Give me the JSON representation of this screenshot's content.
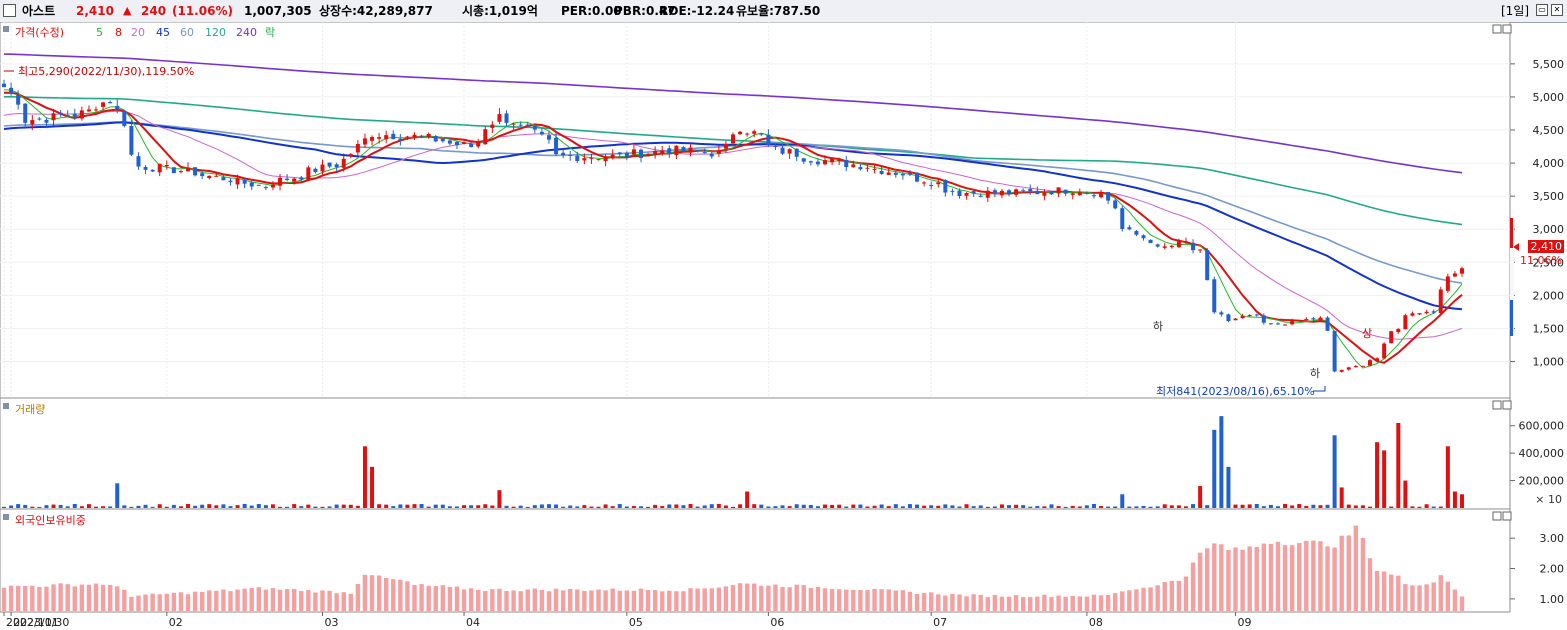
{
  "header": {
    "name": "아스트",
    "price": "2,410",
    "change_arrow": "▲",
    "change": "240",
    "change_pct": "(11.06%)",
    "volume": "1,007,305",
    "listed_label": "상장수:42,289,877",
    "mktcap_label": "시총:1,019억",
    "per_label": "PER:0.00",
    "pbr_label": "PBR:0.47",
    "roe_label": "ROE:-12.24",
    "reserve_label": "유보율:787.50",
    "period": "[1일]"
  },
  "legend": {
    "price": "가격(수정)",
    "ma5": "5",
    "ma8": "8",
    "ma20": "20",
    "ma45": "45",
    "ma60": "60",
    "ma120": "120",
    "ma240": "240",
    "ma_last": "락"
  },
  "panels": {
    "volume_title": "거래량",
    "foreign_title": "외국인보유비중"
  },
  "annotations": {
    "high": "최고5,290(2022/11/30),119.50%",
    "low": "최저841(2023/08/16),65.10%",
    "limit_down": "하",
    "limit_up": "상",
    "last_price": "2,410",
    "last_pct": "11.06%",
    "volume_unit": "× 10"
  },
  "colors": {
    "up": "#e01010",
    "down": "#2060d0",
    "ma5": "#22bb22",
    "ma8": "#dd1111",
    "ma20": "#cc66cc",
    "ma45": "#1133cc",
    "ma60": "#7799cc",
    "ma120": "#22aa88",
    "ma240": "#7733cc",
    "foreign": "#f4a0a0"
  },
  "chart_data": [
    {
      "type": "candlestick",
      "title": "가격(수정)",
      "y_ticks": [
        "1,000",
        "1,500",
        "2,000",
        "2,500",
        "3,000",
        "3,500",
        "4,000",
        "4,500",
        "5,000",
        "5,500"
      ],
      "ylim": [
        600,
        5800
      ],
      "x_labels": [
        "2022/11/30",
        "2023/01",
        "02",
        "03",
        "04",
        "05",
        "06",
        "07",
        "08",
        "09"
      ],
      "keypoints_close": [
        [
          "2022/11/30",
          5150
        ],
        [
          "2022/12/05",
          4650
        ],
        [
          "2022/12/15",
          4750
        ],
        [
          "2022/12/21",
          4950
        ],
        [
          "2022/12/27",
          3950
        ],
        [
          "2023/01/03",
          3900
        ],
        [
          "2023/01/10",
          3800
        ],
        [
          "2023/01/20",
          3650
        ],
        [
          "2023/01/31",
          3900
        ],
        [
          "2023/02/06",
          4050
        ],
        [
          "2023/02/10",
          4450
        ],
        [
          "2023/02/20",
          4400
        ],
        [
          "2023/03/02",
          4250
        ],
        [
          "2023/03/08",
          4700
        ],
        [
          "2023/03/14",
          4500
        ],
        [
          "2023/03/20",
          4100
        ],
        [
          "2023/03/31",
          4100
        ],
        [
          "2023/04/10",
          4200
        ],
        [
          "2023/04/20",
          4150
        ],
        [
          "2023/04/25",
          4550
        ],
        [
          "2023/05/02",
          4200
        ],
        [
          "2023/05/10",
          4050
        ],
        [
          "2023/05/20",
          3950
        ],
        [
          "2023/05/31",
          3750
        ],
        [
          "2023/06/07",
          3550
        ],
        [
          "2023/06/20",
          3550
        ],
        [
          "2023/06/30",
          3600
        ],
        [
          "2023/07/05",
          3550
        ],
        [
          "2023/07/10",
          3000
        ],
        [
          "2023/07/17",
          2700
        ],
        [
          "2023/07/21",
          2800
        ],
        [
          "2023/07/25",
          2650
        ],
        [
          "2023/07/27",
          1750
        ],
        [
          "2023/07/31",
          1600
        ],
        [
          "2023/08/03",
          1700
        ],
        [
          "2023/08/08",
          1550
        ],
        [
          "2023/08/11",
          1600
        ],
        [
          "2023/08/17",
          1650
        ],
        [
          "2023/08/21",
          850
        ],
        [
          "2023/08/25",
          950
        ],
        [
          "2023/08/29",
          1050
        ],
        [
          "2023/08/31",
          1450
        ],
        [
          "2023/09/05",
          1750
        ],
        [
          "2023/09/08",
          1750
        ],
        [
          "2023/09/12",
          2250
        ],
        [
          "2023/09/14",
          2410
        ]
      ],
      "ma_end": {
        "5": 2150,
        "8": 1950,
        "20": 1520,
        "45": 1700,
        "60": 2060,
        "120": 3000,
        "240": 3680
      },
      "ma_start": {
        "5": 5100,
        "8": 5050,
        "20": 4700,
        "45": 4500,
        "60": 4550,
        "120": 5000,
        "240": 5650
      },
      "high": 5290,
      "low": 841,
      "last": 2410
    },
    {
      "type": "bar",
      "title": "거래량",
      "y_ticks": [
        "200,000",
        "400,000",
        "600,000"
      ],
      "ylim": [
        0,
        700000
      ],
      "spikes": [
        [
          "2022/12/22",
          180000
        ],
        [
          "2023/02/09",
          450000
        ],
        [
          "2023/02/10",
          300000
        ],
        [
          "2023/03/08",
          130000
        ],
        [
          "2023/04/26",
          120000
        ],
        [
          "2023/07/10",
          100000
        ],
        [
          "2023/07/25",
          160000
        ],
        [
          "2023/07/27",
          570000
        ],
        [
          "2023/07/28",
          670000
        ],
        [
          "2023/07/31",
          300000
        ],
        [
          "2023/08/21",
          530000
        ],
        [
          "2023/08/22",
          150000
        ],
        [
          "2023/08/29",
          480000
        ],
        [
          "2023/08/30",
          420000
        ],
        [
          "2023/09/01",
          620000
        ],
        [
          "2023/09/04",
          200000
        ],
        [
          "2023/09/12",
          450000
        ],
        [
          "2023/09/13",
          120000
        ],
        [
          "2023/09/14",
          100000
        ]
      ]
    },
    {
      "type": "bar",
      "title": "외국인보유비중",
      "y_ticks": [
        "1.00",
        "2.00",
        "3.00"
      ],
      "ylim": [
        0.6,
        3.6
      ],
      "keypoints": [
        [
          "2022/11/30",
          1.4
        ],
        [
          "2022/12/20",
          1.5
        ],
        [
          "2022/12/26",
          1.1
        ],
        [
          "2023/01/20",
          1.35
        ],
        [
          "2023/02/07",
          1.2
        ],
        [
          "2023/02/09",
          1.85
        ],
        [
          "2023/02/20",
          1.45
        ],
        [
          "2023/03/05",
          1.3
        ],
        [
          "2023/04/15",
          1.3
        ],
        [
          "2023/04/25",
          1.5
        ],
        [
          "2023/05/15",
          1.35
        ],
        [
          "2023/06/10",
          1.1
        ],
        [
          "2023/07/05",
          1.1
        ],
        [
          "2023/07/20",
          1.6
        ],
        [
          "2023/07/27",
          2.8
        ],
        [
          "2023/08/01",
          2.6
        ],
        [
          "2023/08/08",
          2.9
        ],
        [
          "2023/08/21",
          2.8
        ],
        [
          "2023/08/24",
          3.3
        ],
        [
          "2023/08/29",
          2.0
        ],
        [
          "2023/09/05",
          1.4
        ],
        [
          "2023/09/11",
          1.8
        ],
        [
          "2023/09/14",
          1.1
        ]
      ]
    }
  ]
}
